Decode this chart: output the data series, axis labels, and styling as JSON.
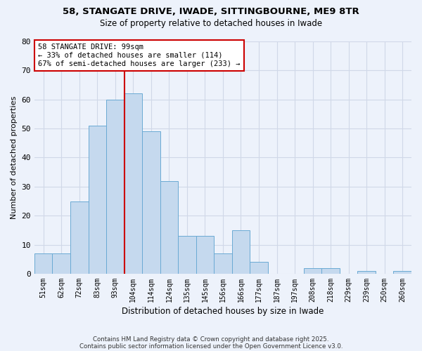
{
  "title": "58, STANGATE DRIVE, IWADE, SITTINGBOURNE, ME9 8TR",
  "subtitle": "Size of property relative to detached houses in Iwade",
  "xlabel": "Distribution of detached houses by size in Iwade",
  "ylabel": "Number of detached properties",
  "categories": [
    "51sqm",
    "62sqm",
    "72sqm",
    "83sqm",
    "93sqm",
    "104sqm",
    "114sqm",
    "124sqm",
    "135sqm",
    "145sqm",
    "156sqm",
    "166sqm",
    "177sqm",
    "187sqm",
    "197sqm",
    "208sqm",
    "218sqm",
    "229sqm",
    "239sqm",
    "250sqm",
    "260sqm"
  ],
  "values": [
    7,
    7,
    25,
    51,
    60,
    62,
    49,
    32,
    13,
    13,
    7,
    15,
    4,
    0,
    0,
    2,
    2,
    0,
    1,
    0,
    1
  ],
  "bar_color": "#c5d9ee",
  "bar_edge_color": "#6aaad4",
  "grid_color": "#d0d8e8",
  "bg_color": "#edf2fb",
  "vline_x_index": 5,
  "vline_color": "#cc0000",
  "annotation_text": "58 STANGATE DRIVE: 99sqm\n← 33% of detached houses are smaller (114)\n67% of semi-detached houses are larger (233) →",
  "annotation_box_color": "#ffffff",
  "annotation_box_edge": "#cc0000",
  "ylim": [
    0,
    80
  ],
  "yticks": [
    0,
    10,
    20,
    30,
    40,
    50,
    60,
    70,
    80
  ],
  "footer_line1": "Contains HM Land Registry data © Crown copyright and database right 2025.",
  "footer_line2": "Contains public sector information licensed under the Open Government Licence v3.0."
}
